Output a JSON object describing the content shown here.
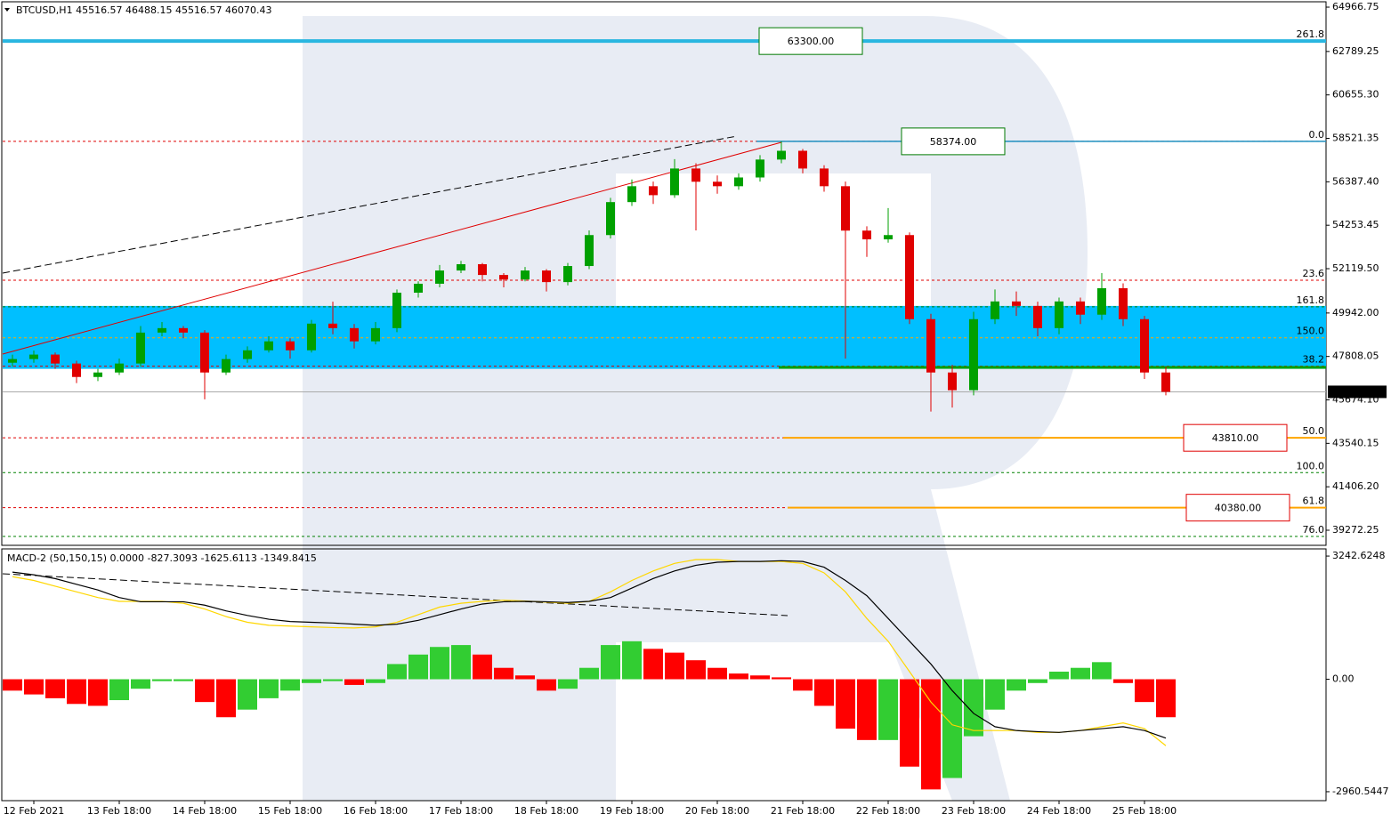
{
  "chart_data": [
    {
      "type": "candlestick",
      "header": "BTCUSD,H1  45516.57 46488.15 45516.57 46070.43",
      "categories": [
        null,
        "12 Feb 2021",
        null,
        null,
        null,
        "13 Feb 18:00",
        null,
        null,
        null,
        "14 Feb 18:00",
        null,
        null,
        null,
        "15 Feb 18:00",
        null,
        null,
        null,
        "16 Feb 18:00",
        null,
        null,
        null,
        "17 Feb 18:00",
        null,
        null,
        null,
        "18 Feb 18:00",
        null,
        null,
        null,
        "19 Feb 18:00",
        null,
        null,
        null,
        "20 Feb 18:00",
        null,
        null,
        null,
        "21 Feb 18:00",
        null,
        null,
        null,
        "22 Feb 18:00",
        null,
        null,
        null,
        "23 Feb 18:00",
        null,
        null,
        null,
        "24 Feb 18:00",
        null,
        null,
        null,
        "25 Feb 18:00",
        null
      ],
      "open": [
        47500,
        47680,
        47900,
        47460,
        46800,
        47020,
        47460,
        48980,
        49200,
        48980,
        47020,
        47680,
        48110,
        48550,
        48110,
        49420,
        49200,
        48550,
        49200,
        50940,
        51380,
        52030,
        52340,
        51810,
        51590,
        52030,
        51460,
        52250,
        53770,
        55390,
        56170,
        55730,
        57040,
        56390,
        56170,
        56600,
        57480,
        57910,
        57040,
        56170,
        53990,
        53560,
        53770,
        49640,
        47020,
        46150,
        49640,
        50510,
        50290,
        49200,
        50510,
        49860,
        51160,
        49640,
        47020
      ],
      "high": [
        47900,
        48100,
        48000,
        47600,
        47200,
        47700,
        49300,
        49500,
        49300,
        49100,
        47900,
        48300,
        48800,
        48700,
        49600,
        50500,
        49400,
        49500,
        51100,
        51500,
        52300,
        52500,
        52400,
        51900,
        52200,
        52100,
        52400,
        54000,
        55600,
        56500,
        56400,
        57500,
        57300,
        56700,
        56800,
        57700,
        58374,
        58000,
        57200,
        56400,
        54200,
        55100,
        53900,
        49900,
        47400,
        50000,
        51100,
        51000,
        50500,
        50700,
        50700,
        51900,
        51400,
        49800,
        47300
      ],
      "low": [
        47300,
        47500,
        47200,
        46500,
        46600,
        46900,
        47300,
        48800,
        48700,
        45700,
        46900,
        47500,
        48000,
        47700,
        48000,
        48900,
        48200,
        48400,
        49000,
        50700,
        51200,
        51900,
        51500,
        51200,
        51500,
        51000,
        51300,
        52100,
        53600,
        55200,
        55300,
        55600,
        54000,
        55800,
        56000,
        56400,
        57300,
        56800,
        55900,
        47700,
        52700,
        53400,
        49400,
        45100,
        45300,
        45900,
        49400,
        49800,
        48800,
        48900,
        49400,
        49600,
        49300,
        46700,
        45900
      ],
      "close": [
        47680,
        47900,
        47460,
        46800,
        47020,
        47460,
        48980,
        49200,
        48980,
        47020,
        47680,
        48110,
        48550,
        48110,
        49420,
        49200,
        48550,
        49200,
        50940,
        51380,
        52030,
        52340,
        51810,
        51590,
        52030,
        51460,
        52250,
        53770,
        55390,
        56170,
        55730,
        57040,
        56390,
        56170,
        56600,
        57480,
        57910,
        57040,
        56170,
        53990,
        53560,
        53770,
        49640,
        47020,
        46150,
        49640,
        50510,
        50290,
        49200,
        50510,
        49860,
        51160,
        49640,
        47020,
        46070
      ],
      "up_color": "#00a000",
      "down_color": "#e00000",
      "ylim": [
        38530,
        65230
      ],
      "yticks": [
        64966.75,
        62789.25,
        {
          "value": 60655.3,
          "label": "60655.30"
        },
        58521.35,
        {
          "value": 56387.4,
          "label": "56387.40"
        },
        54253.45,
        {
          "value": 52119.5,
          "label": "52119.50"
        },
        {
          "value": 49942,
          "label": "49942.00"
        },
        47808.05,
        {
          "value": 45674.1,
          "label": "45674.10"
        },
        43540.15,
        {
          "value": 41406.2,
          "label": "41406.20"
        },
        39272.25
      ],
      "last_price": 46070.43,
      "zone": [
        47200,
        50290
      ],
      "zone_color": "#00bfff",
      "levels": [
        {
          "value": 63300,
          "label": "63300.00",
          "color": "#007a00",
          "line_color": "#29b6e0"
        },
        {
          "value": 58374,
          "label": "58374.00",
          "color": "#007a00",
          "line_color": "#1e90c0"
        },
        {
          "value": 43810,
          "label": "43810.00",
          "color": "#e00000",
          "line_color": "#ffa500"
        },
        {
          "value": 40380,
          "label": "40380.00",
          "color": "#e00000",
          "line_color": "#ffa500"
        }
      ],
      "fib_levels": [
        {
          "label": "261.8",
          "price": 63300,
          "color": "#008000"
        },
        {
          "label": "0.0",
          "price": 58374,
          "color": "#e00000"
        },
        {
          "label": "23.6",
          "price": 51553,
          "color": "#e00000"
        },
        {
          "label": "161.8",
          "price": 50247,
          "color": "#008000"
        },
        {
          "label": "150.0",
          "price": 48723,
          "color": "#ffa500"
        },
        {
          "label": "38.2",
          "price": 47329,
          "color": "#e00000"
        },
        {
          "label": "50.0",
          "price": 43810,
          "color": "#e00000"
        },
        {
          "label": "100.0",
          "price": 42102,
          "color": "#008000"
        },
        {
          "label": "61.8",
          "price": 40380,
          "color": "#e00000"
        },
        {
          "label": "76.0",
          "price": 38966,
          "color": "#008000"
        }
      ]
    },
    {
      "type": "macd",
      "header": "MACD-2 (50,150,15) 0.0000 -827.3093 -1625.6113 -1349.8415",
      "histogram": [
        -300,
        -400,
        -500,
        -650,
        -700,
        -550,
        -250,
        -50,
        -50,
        -600,
        -1000,
        -800,
        -500,
        -300,
        -100,
        -50,
        -150,
        -100,
        400,
        650,
        850,
        900,
        650,
        300,
        100,
        -300,
        -250,
        300,
        900,
        1000,
        800,
        700,
        500,
        300,
        150,
        100,
        50,
        -300,
        -700,
        -1300,
        -1600,
        -1600,
        -2300,
        -2900,
        -2600,
        -1500,
        -800,
        -300,
        -100,
        200,
        300,
        450,
        -100,
        -600,
        -1000
      ],
      "macd": [
        2820,
        2750,
        2650,
        2500,
        2350,
        2150,
        2040,
        2040,
        2040,
        1950,
        1800,
        1680,
        1580,
        1520,
        1500,
        1480,
        1450,
        1420,
        1450,
        1550,
        1700,
        1850,
        1980,
        2040,
        2050,
        2040,
        2020,
        2050,
        2150,
        2400,
        2650,
        2850,
        3000,
        3080,
        3100,
        3100,
        3120,
        3100,
        2950,
        2600,
        2200,
        1600,
        1000,
        400,
        -300,
        -900,
        -1250,
        -1350,
        -1380,
        -1400,
        -1350,
        -1300,
        -1250,
        -1350,
        -1550
      ],
      "signal": [
        2700,
        2600,
        2450,
        2300,
        2150,
        2050,
        2050,
        2050,
        2000,
        1850,
        1650,
        1500,
        1420,
        1400,
        1380,
        1360,
        1350,
        1380,
        1500,
        1700,
        1900,
        2000,
        2050,
        2080,
        2060,
        2030,
        2000,
        2050,
        2300,
        2600,
        2850,
        3050,
        3150,
        3150,
        3100,
        3100,
        3100,
        3050,
        2800,
        2300,
        1600,
        1000,
        200,
        -600,
        -1200,
        -1350,
        -1350,
        -1350,
        -1400,
        -1400,
        -1350,
        -1250,
        -1150,
        -1300,
        -1750
      ],
      "up_color": "#32cd32",
      "down_color": "#ff0000",
      "macd_color": "#000000",
      "signal_color": "#ffd700",
      "ylim": [
        -3196,
        3408
      ],
      "yticks": [
        3242.6248,
        {
          "value": 0,
          "label": "0.00"
        },
        -2960.5447
      ]
    }
  ]
}
